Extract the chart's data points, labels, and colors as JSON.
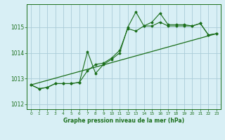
{
  "title": "Graphe pression niveau de la mer (hPa)",
  "bg_color": "#d8eff5",
  "line_color": "#1a6e1a",
  "grid_color": "#aaccd8",
  "xlim": [
    -0.5,
    23.5
  ],
  "ylim": [
    1011.8,
    1015.9
  ],
  "xticks": [
    0,
    1,
    2,
    3,
    4,
    5,
    6,
    7,
    8,
    9,
    10,
    11,
    12,
    13,
    14,
    15,
    16,
    17,
    18,
    19,
    20,
    21,
    22,
    23
  ],
  "yticks": [
    1012,
    1013,
    1014,
    1015
  ],
  "series1": [
    [
      0,
      1012.75
    ],
    [
      1,
      1012.6
    ],
    [
      2,
      1012.65
    ],
    [
      3,
      1012.8
    ],
    [
      4,
      1012.8
    ],
    [
      5,
      1012.8
    ],
    [
      6,
      1012.85
    ],
    [
      7,
      1013.3
    ],
    [
      8,
      1013.55
    ],
    [
      9,
      1013.6
    ],
    [
      10,
      1013.8
    ],
    [
      11,
      1014.1
    ],
    [
      12,
      1014.95
    ],
    [
      13,
      1014.85
    ],
    [
      14,
      1015.05
    ],
    [
      15,
      1015.05
    ],
    [
      16,
      1015.2
    ],
    [
      17,
      1015.05
    ],
    [
      18,
      1015.05
    ],
    [
      19,
      1015.05
    ],
    [
      20,
      1015.05
    ],
    [
      21,
      1015.15
    ],
    [
      22,
      1014.7
    ],
    [
      23,
      1014.75
    ]
  ],
  "series2": [
    [
      0,
      1012.75
    ],
    [
      1,
      1012.6
    ],
    [
      2,
      1012.65
    ],
    [
      3,
      1012.8
    ],
    [
      4,
      1012.8
    ],
    [
      5,
      1012.8
    ],
    [
      6,
      1012.85
    ],
    [
      7,
      1014.05
    ],
    [
      8,
      1013.2
    ],
    [
      9,
      1013.55
    ],
    [
      10,
      1013.75
    ],
    [
      11,
      1014.0
    ],
    [
      12,
      1015.0
    ],
    [
      13,
      1015.6
    ],
    [
      14,
      1015.05
    ],
    [
      15,
      1015.2
    ],
    [
      16,
      1015.55
    ],
    [
      17,
      1015.1
    ],
    [
      18,
      1015.1
    ],
    [
      19,
      1015.1
    ],
    [
      20,
      1015.05
    ],
    [
      21,
      1015.15
    ],
    [
      22,
      1014.7
    ],
    [
      23,
      1014.75
    ]
  ],
  "series3_linear": [
    [
      0,
      1012.75
    ],
    [
      23,
      1014.75
    ]
  ]
}
